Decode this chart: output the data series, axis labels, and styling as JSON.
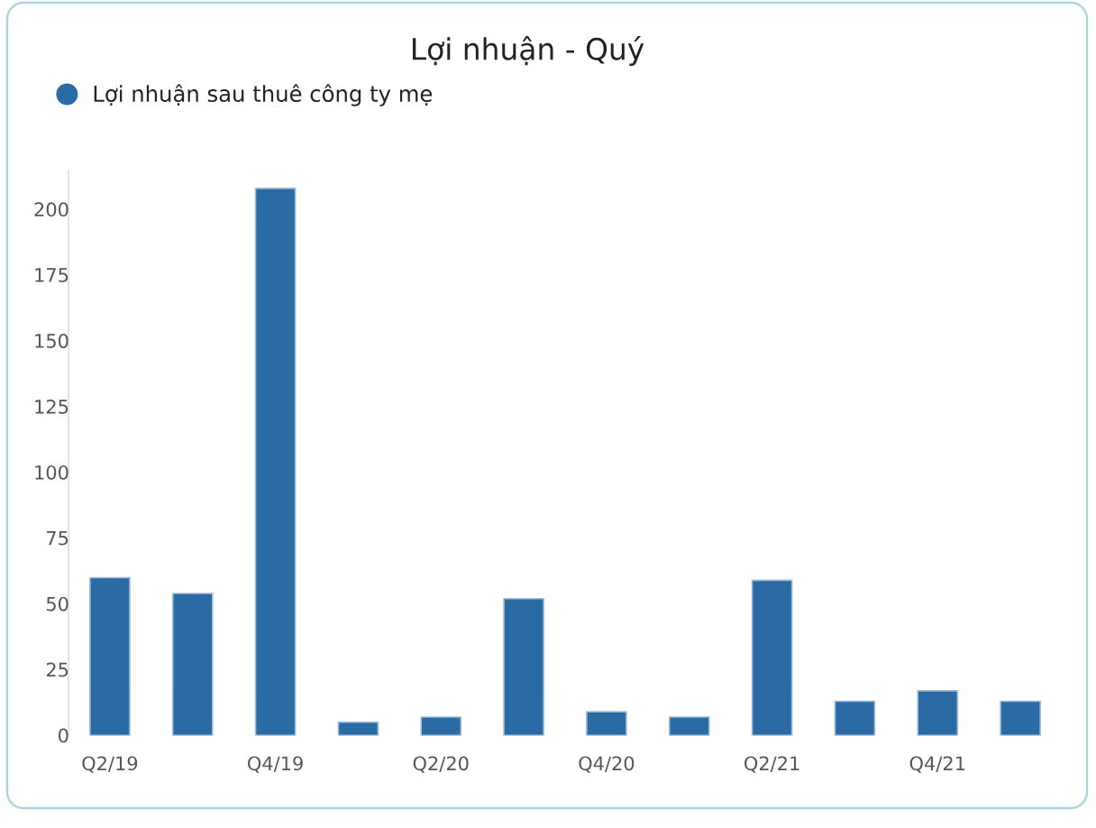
{
  "chart_data": {
    "type": "bar",
    "title": "Lợi nhuận - Quý",
    "categories": [
      "Q2/19",
      null,
      "Q4/19",
      null,
      "Q2/20",
      null,
      "Q4/20",
      null,
      "Q2/21",
      null,
      "Q4/21",
      null
    ],
    "series": [
      {
        "name": "Lợi nhuận sau thuê công ty mẹ",
        "color": "#2a6aa5",
        "values": [
          60,
          54,
          208,
          5,
          7,
          52,
          9,
          7,
          59,
          13,
          17,
          13
        ]
      }
    ],
    "ylim": [
      0,
      215
    ],
    "yticks": [
      0,
      25,
      50,
      75,
      100,
      125,
      150,
      175,
      200
    ],
    "legend": "top left"
  }
}
